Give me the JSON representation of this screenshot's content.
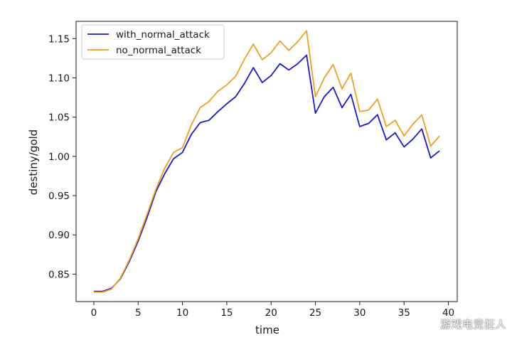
{
  "chart_data": {
    "type": "line",
    "title": "",
    "xlabel": "time",
    "ylabel": "destiny/gold",
    "xlim": [
      -2,
      41
    ],
    "ylim": [
      0.815,
      1.172
    ],
    "x_ticks": [
      0,
      5,
      10,
      15,
      20,
      25,
      30,
      35,
      40
    ],
    "y_ticks": [
      0.85,
      0.9,
      0.95,
      1.0,
      1.05,
      1.1,
      1.15
    ],
    "grid": false,
    "legend_position": "top-left",
    "x": [
      0,
      1,
      2,
      3,
      4,
      5,
      6,
      7,
      8,
      9,
      10,
      11,
      12,
      13,
      14,
      15,
      16,
      17,
      18,
      19,
      20,
      21,
      22,
      23,
      24,
      25,
      26,
      27,
      28,
      29,
      30,
      31,
      32,
      33,
      34,
      35,
      36,
      37,
      38,
      39
    ],
    "series": [
      {
        "name": "with_normal_attack",
        "color": "#1a1acc",
        "values": [
          0.828,
          0.828,
          0.832,
          0.844,
          0.866,
          0.892,
          0.922,
          0.955,
          0.978,
          0.997,
          1.005,
          1.028,
          1.043,
          1.046,
          1.057,
          1.067,
          1.076,
          1.093,
          1.113,
          1.094,
          1.103,
          1.118,
          1.11,
          1.118,
          1.129,
          1.055,
          1.076,
          1.088,
          1.062,
          1.079,
          1.038,
          1.042,
          1.053,
          1.021,
          1.03,
          1.012,
          1.022,
          1.035,
          0.998,
          1.007
        ]
      },
      {
        "name": "no_normal_attack",
        "color": "#f0a020",
        "values": [
          0.827,
          0.827,
          0.831,
          0.845,
          0.868,
          0.895,
          0.926,
          0.958,
          0.985,
          1.005,
          1.011,
          1.04,
          1.062,
          1.07,
          1.083,
          1.091,
          1.102,
          1.124,
          1.143,
          1.123,
          1.132,
          1.147,
          1.135,
          1.146,
          1.16,
          1.076,
          1.1,
          1.117,
          1.086,
          1.106,
          1.057,
          1.059,
          1.073,
          1.038,
          1.046,
          1.026,
          1.041,
          1.053,
          1.013,
          1.026
        ]
      }
    ]
  },
  "watermark": "游戏电竞狂人"
}
